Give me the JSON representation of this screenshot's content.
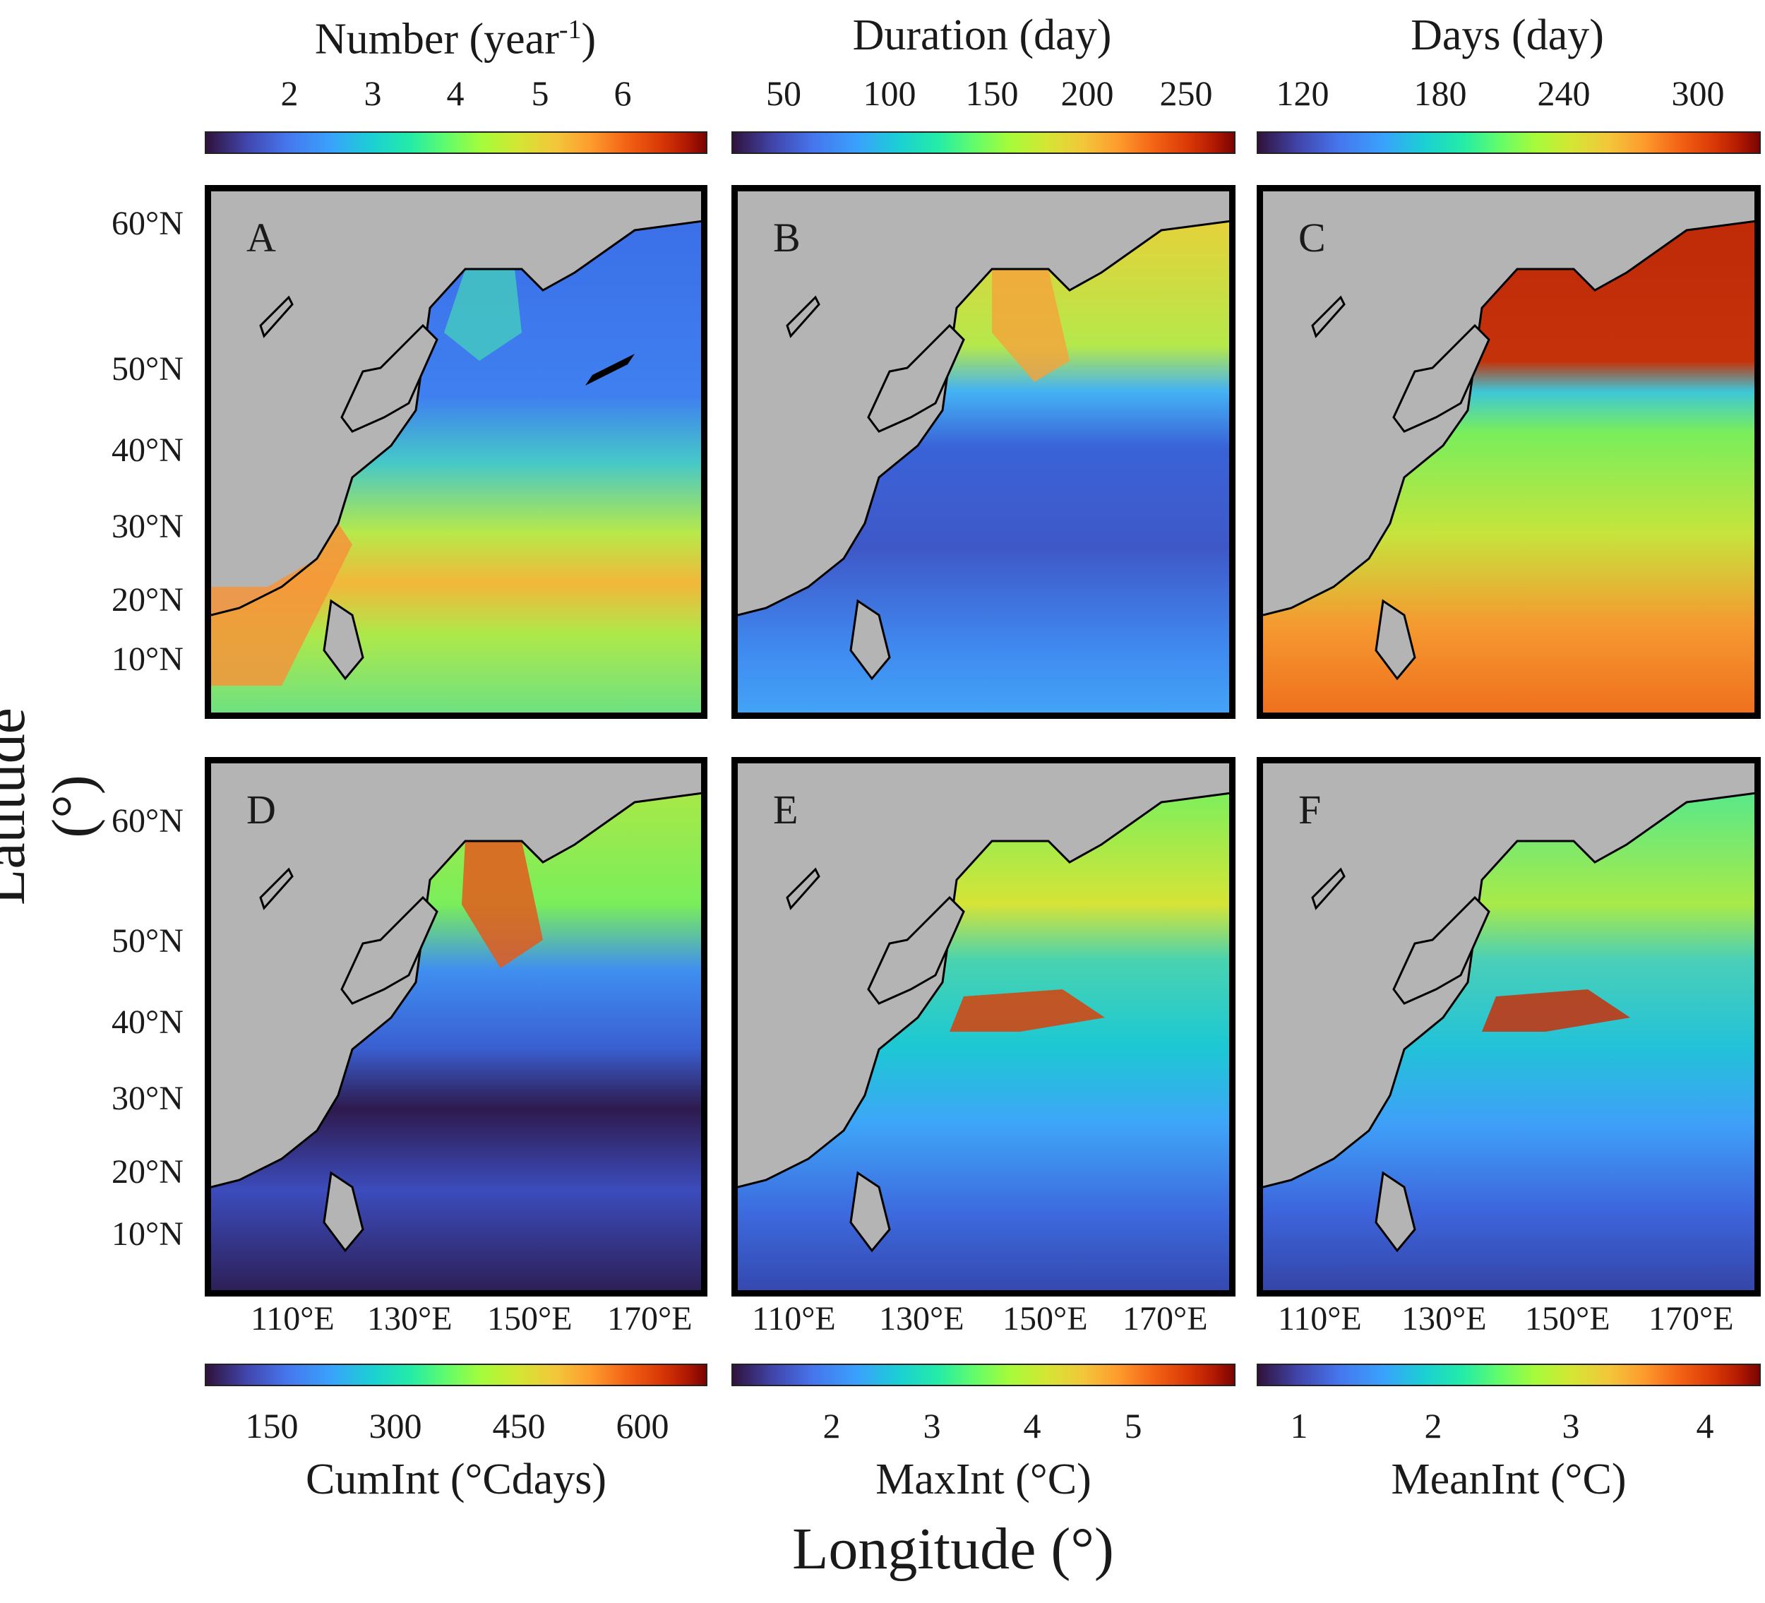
{
  "figure": {
    "y_axis_label": "Latitude (°)",
    "x_axis_label": "Longitude (°)",
    "latitude_ticks": [
      "60°N",
      "50°N",
      "40°N",
      "30°N",
      "20°N",
      "10°N"
    ],
    "longitude_ticks": [
      "110°E",
      "130°E",
      "150°E",
      "170°E"
    ]
  },
  "colorbars": {
    "top": [
      {
        "title": "Number (year",
        "title_sup": "-1",
        "title_end": ")",
        "ticks": [
          "2",
          "3",
          "4",
          "5",
          "6"
        ]
      },
      {
        "title": "Duration (day)",
        "ticks": [
          "50",
          "100",
          "150",
          "200",
          "250"
        ]
      },
      {
        "title": "Days (day)",
        "ticks": [
          "120",
          "180",
          "240",
          "300"
        ]
      }
    ],
    "bottom": [
      {
        "title": "CumInt (°Cdays)",
        "ticks": [
          "150",
          "300",
          "450",
          "600"
        ]
      },
      {
        "title": "MaxInt (°C)",
        "ticks": [
          "2",
          "3",
          "4",
          "5"
        ]
      },
      {
        "title": "MeanInt (°C)",
        "ticks": [
          "1",
          "2",
          "3",
          "4"
        ]
      }
    ]
  },
  "panels": [
    {
      "letter": "A",
      "metric": "Number (year-1)"
    },
    {
      "letter": "B",
      "metric": "Duration (day)"
    },
    {
      "letter": "C",
      "metric": "Days (day)"
    },
    {
      "letter": "D",
      "metric": "CumInt (°Cdays)"
    },
    {
      "letter": "E",
      "metric": "MaxInt (°C)"
    },
    {
      "letter": "F",
      "metric": "MeanInt (°C)"
    }
  ],
  "colors": {
    "land": "#b4b4b4",
    "frame": "#000000",
    "colormap": "turbo"
  }
}
